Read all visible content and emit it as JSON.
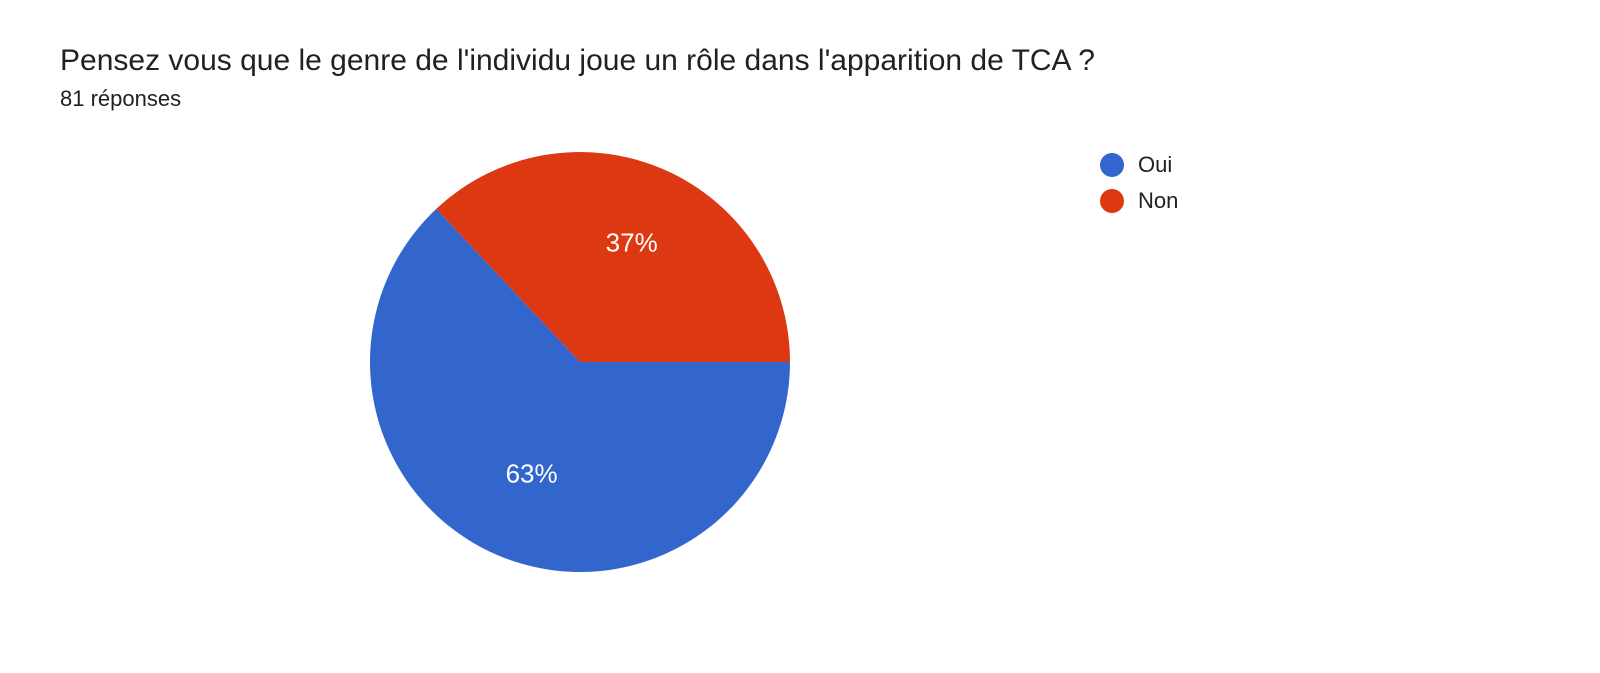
{
  "header": {
    "title": "Pensez vous que le genre de l'individu joue un rôle dans l'apparition de TCA ?",
    "subtitle": "81 réponses"
  },
  "chart": {
    "type": "pie",
    "radius": 210,
    "background_color": "#ffffff",
    "label_color": "#ffffff",
    "label_fontsize": 26,
    "slices": [
      {
        "key": "oui",
        "label": "Oui",
        "pct": 63,
        "pct_label": "63%",
        "color": "#3366cc"
      },
      {
        "key": "non",
        "label": "Non",
        "pct": 37,
        "pct_label": "37%",
        "color": "#dc3912"
      }
    ]
  },
  "legend": {
    "items": [
      {
        "label": "Oui",
        "color": "#3366cc"
      },
      {
        "label": "Non",
        "color": "#dc3912"
      }
    ],
    "fontsize": 22,
    "text_color": "#202124"
  }
}
